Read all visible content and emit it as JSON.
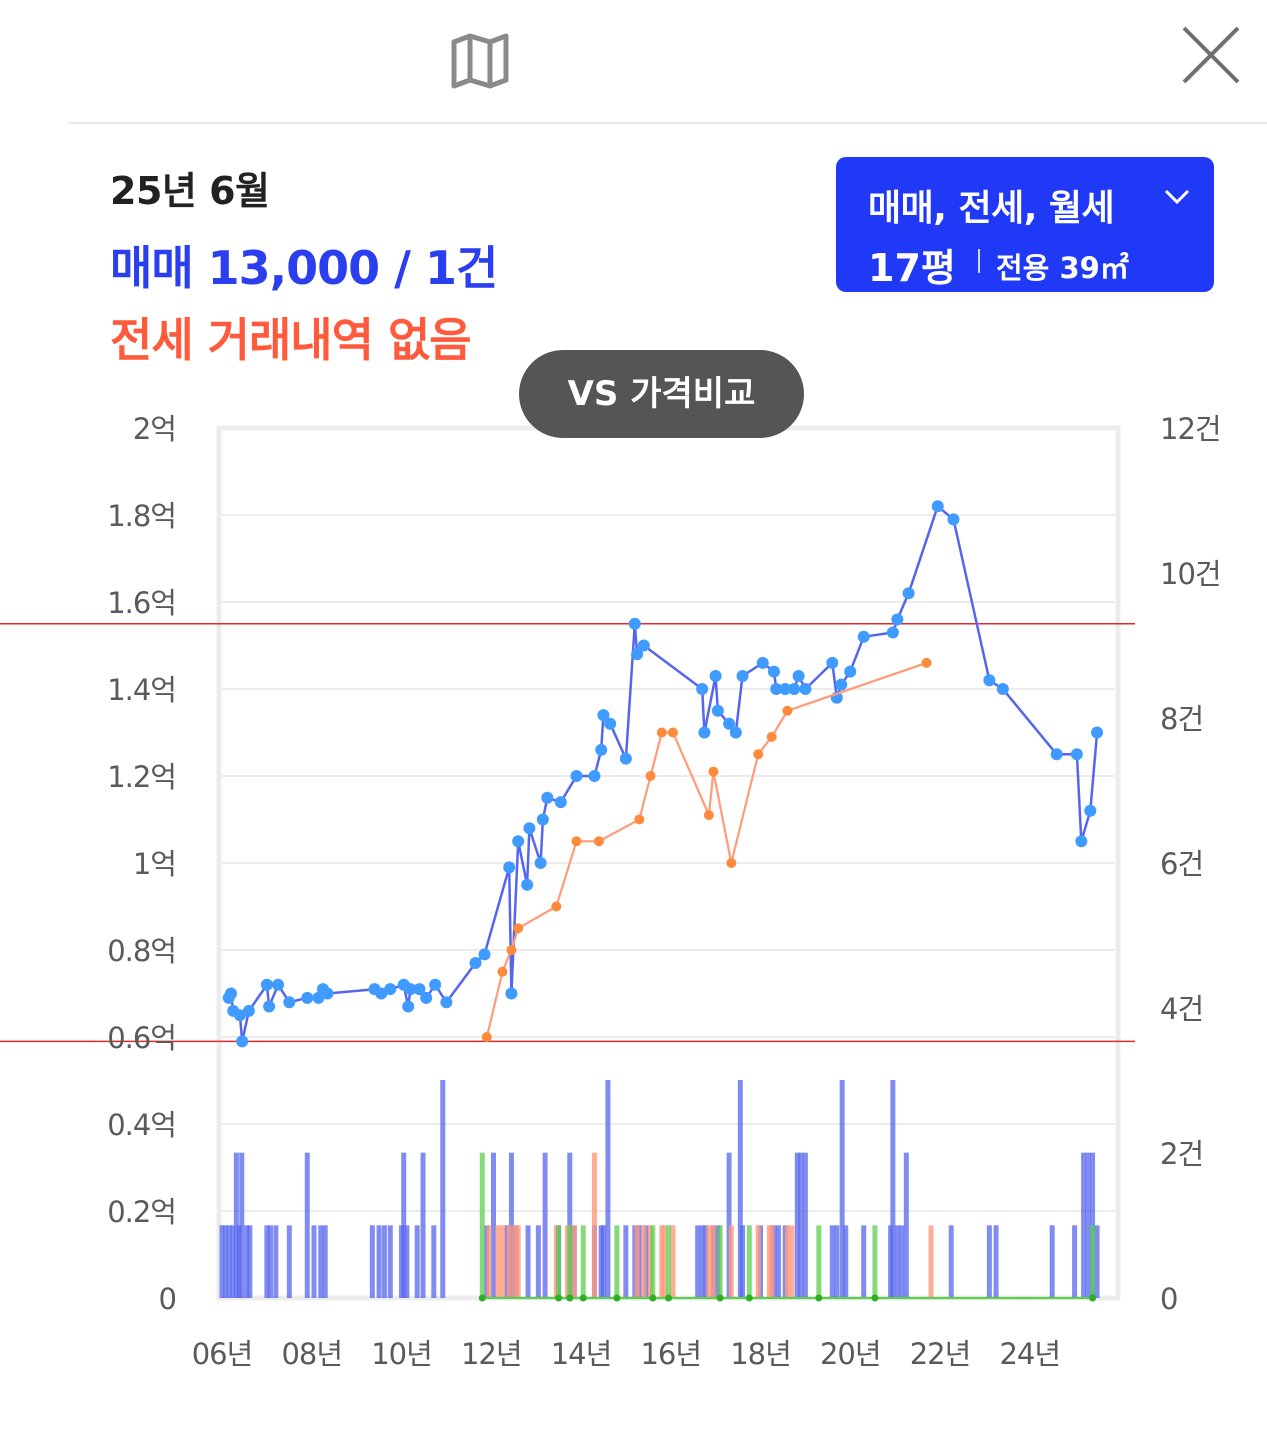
{
  "header": {
    "map_icon": "map-icon",
    "close_icon": "close-icon"
  },
  "info": {
    "date": "25년 6월",
    "sale": "매매 13,000 / 1건",
    "jeonse": "전세 거래내역 없음"
  },
  "filter": {
    "types": "매매, 전세, 월세",
    "size": "17평",
    "area": "전용 39㎡"
  },
  "vs_button": "VS 가격비교",
  "colors": {
    "sale": "#5566ee",
    "sale_point": "#3f9bff",
    "jeonse": "#ff9a7a",
    "jeonse_point": "#ff8a3c",
    "wolse": "#5ccd4e",
    "reference_line": "#e02a2a",
    "filter_bg": "#2039f6"
  },
  "chart_data": {
    "type": "line",
    "title": "",
    "grid": true,
    "x_axis": {
      "label": "",
      "range": [
        2006.0,
        2025.9
      ],
      "ticks": [
        "06년",
        "08년",
        "10년",
        "12년",
        "14년",
        "16년",
        "18년",
        "20년",
        "22년",
        "24년"
      ]
    },
    "y_left": {
      "label": "",
      "range": [
        0,
        2.0
      ],
      "unit": "억",
      "ticks": [
        "0",
        "0.2억",
        "0.4억",
        "0.6억",
        "0.8억",
        "1억",
        "1.2억",
        "1.4억",
        "1.6억",
        "1.8억",
        "2억"
      ]
    },
    "y_right": {
      "label": "",
      "range": [
        0,
        12
      ],
      "unit": "건",
      "ticks": [
        "0",
        "2건",
        "4건",
        "6건",
        "8건",
        "10건",
        "12건"
      ]
    },
    "reference_lines": [
      1.55,
      0.59
    ],
    "series": [
      {
        "name": "매매",
        "type": "line",
        "points": [
          [
            2006.15,
            0.69
          ],
          [
            2006.2,
            0.7
          ],
          [
            2006.25,
            0.66
          ],
          [
            2006.4,
            0.65
          ],
          [
            2006.45,
            0.59
          ],
          [
            2006.6,
            0.66
          ],
          [
            2007.0,
            0.72
          ],
          [
            2007.05,
            0.67
          ],
          [
            2007.25,
            0.72
          ],
          [
            2007.5,
            0.68
          ],
          [
            2007.9,
            0.69
          ],
          [
            2008.15,
            0.69
          ],
          [
            2008.25,
            0.71
          ],
          [
            2008.35,
            0.7
          ],
          [
            2009.4,
            0.71
          ],
          [
            2009.55,
            0.7
          ],
          [
            2009.75,
            0.71
          ],
          [
            2010.05,
            0.72
          ],
          [
            2010.15,
            0.67
          ],
          [
            2010.2,
            0.71
          ],
          [
            2010.4,
            0.71
          ],
          [
            2010.55,
            0.69
          ],
          [
            2010.75,
            0.72
          ],
          [
            2011.0,
            0.68
          ],
          [
            2011.65,
            0.77
          ],
          [
            2011.85,
            0.79
          ],
          [
            2012.4,
            0.99
          ],
          [
            2012.45,
            0.7
          ],
          [
            2012.6,
            1.05
          ],
          [
            2012.8,
            0.95
          ],
          [
            2012.85,
            1.08
          ],
          [
            2013.1,
            1.0
          ],
          [
            2013.15,
            1.1
          ],
          [
            2013.25,
            1.15
          ],
          [
            2013.55,
            1.14
          ],
          [
            2013.9,
            1.2
          ],
          [
            2014.3,
            1.2
          ],
          [
            2014.45,
            1.26
          ],
          [
            2014.5,
            1.34
          ],
          [
            2014.65,
            1.32
          ],
          [
            2015.0,
            1.24
          ],
          [
            2015.2,
            1.55
          ],
          [
            2015.25,
            1.48
          ],
          [
            2015.4,
            1.5
          ],
          [
            2016.7,
            1.4
          ],
          [
            2016.75,
            1.3
          ],
          [
            2017.0,
            1.43
          ],
          [
            2017.05,
            1.35
          ],
          [
            2017.3,
            1.32
          ],
          [
            2017.45,
            1.3
          ],
          [
            2017.6,
            1.43
          ],
          [
            2018.05,
            1.46
          ],
          [
            2018.3,
            1.44
          ],
          [
            2018.35,
            1.4
          ],
          [
            2018.55,
            1.4
          ],
          [
            2018.75,
            1.4
          ],
          [
            2018.85,
            1.43
          ],
          [
            2019.0,
            1.4
          ],
          [
            2019.6,
            1.46
          ],
          [
            2019.7,
            1.38
          ],
          [
            2019.8,
            1.41
          ],
          [
            2020.0,
            1.44
          ],
          [
            2020.3,
            1.52
          ],
          [
            2020.95,
            1.53
          ],
          [
            2021.05,
            1.56
          ],
          [
            2021.3,
            1.62
          ],
          [
            2021.95,
            1.82
          ],
          [
            2022.3,
            1.79
          ],
          [
            2023.1,
            1.42
          ],
          [
            2023.4,
            1.4
          ],
          [
            2024.6,
            1.25
          ],
          [
            2025.05,
            1.25
          ],
          [
            2025.15,
            1.05
          ],
          [
            2025.35,
            1.12
          ],
          [
            2025.5,
            1.3
          ]
        ]
      },
      {
        "name": "전세",
        "type": "line",
        "points": [
          [
            2011.9,
            0.6
          ],
          [
            2012.25,
            0.75
          ],
          [
            2012.45,
            0.8
          ],
          [
            2012.6,
            0.85
          ],
          [
            2013.45,
            0.9
          ],
          [
            2013.9,
            1.05
          ],
          [
            2014.4,
            1.05
          ],
          [
            2015.3,
            1.1
          ],
          [
            2015.55,
            1.2
          ],
          [
            2015.8,
            1.3
          ],
          [
            2016.05,
            1.3
          ],
          [
            2016.85,
            1.11
          ],
          [
            2016.95,
            1.21
          ],
          [
            2017.35,
            1.0
          ],
          [
            2017.95,
            1.25
          ],
          [
            2018.25,
            1.29
          ],
          [
            2018.6,
            1.35
          ],
          [
            2021.7,
            1.46
          ]
        ]
      },
      {
        "name": "월세",
        "type": "line",
        "points": [
          [
            2011.8,
            0
          ],
          [
            2013.5,
            0
          ],
          [
            2013.75,
            0
          ],
          [
            2014.05,
            0
          ],
          [
            2014.8,
            0
          ],
          [
            2015.6,
            0
          ],
          [
            2015.95,
            0
          ],
          [
            2017.1,
            0
          ],
          [
            2017.75,
            0
          ],
          [
            2019.3,
            0
          ],
          [
            2020.55,
            0
          ],
          [
            2025.4,
            0
          ]
        ]
      }
    ],
    "volume_bars": {
      "unit": "건",
      "sale": [
        [
          2006.0,
          1
        ],
        [
          2006.08,
          1
        ],
        [
          2006.16,
          1
        ],
        [
          2006.24,
          1
        ],
        [
          2006.32,
          2
        ],
        [
          2006.38,
          1
        ],
        [
          2006.44,
          2
        ],
        [
          2006.55,
          1
        ],
        [
          2006.62,
          1
        ],
        [
          2007.0,
          1
        ],
        [
          2007.08,
          1
        ],
        [
          2007.2,
          1
        ],
        [
          2007.5,
          1
        ],
        [
          2007.9,
          2
        ],
        [
          2008.05,
          1
        ],
        [
          2008.2,
          1
        ],
        [
          2008.3,
          1
        ],
        [
          2009.35,
          1
        ],
        [
          2009.5,
          1
        ],
        [
          2009.62,
          1
        ],
        [
          2009.75,
          1
        ],
        [
          2010.0,
          1
        ],
        [
          2010.05,
          2
        ],
        [
          2010.12,
          1
        ],
        [
          2010.35,
          1
        ],
        [
          2010.48,
          2
        ],
        [
          2010.72,
          1
        ],
        [
          2010.92,
          3
        ],
        [
          2011.9,
          1
        ],
        [
          2012.05,
          2
        ],
        [
          2012.35,
          1
        ],
        [
          2012.45,
          2
        ],
        [
          2012.55,
          1
        ],
        [
          2012.82,
          1
        ],
        [
          2013.05,
          1
        ],
        [
          2013.2,
          2
        ],
        [
          2013.5,
          1
        ],
        [
          2013.75,
          2
        ],
        [
          2013.85,
          1
        ],
        [
          2014.3,
          1
        ],
        [
          2014.45,
          1
        ],
        [
          2014.5,
          1
        ],
        [
          2014.6,
          3
        ],
        [
          2015.0,
          1
        ],
        [
          2015.2,
          1
        ],
        [
          2015.3,
          1
        ],
        [
          2015.45,
          1
        ],
        [
          2016.6,
          1
        ],
        [
          2016.7,
          1
        ],
        [
          2016.78,
          1
        ],
        [
          2016.95,
          1
        ],
        [
          2017.05,
          1
        ],
        [
          2017.3,
          2
        ],
        [
          2017.55,
          3
        ],
        [
          2017.6,
          1
        ],
        [
          2018.0,
          1
        ],
        [
          2018.3,
          1
        ],
        [
          2018.4,
          1
        ],
        [
          2018.55,
          1
        ],
        [
          2018.82,
          2
        ],
        [
          2018.9,
          2
        ],
        [
          2019.0,
          2
        ],
        [
          2019.6,
          1
        ],
        [
          2019.7,
          1
        ],
        [
          2019.82,
          3
        ],
        [
          2019.9,
          1
        ],
        [
          2020.3,
          1
        ],
        [
          2020.9,
          1
        ],
        [
          2020.95,
          3
        ],
        [
          2021.05,
          1
        ],
        [
          2021.15,
          1
        ],
        [
          2021.25,
          2
        ],
        [
          2022.25,
          1
        ],
        [
          2023.1,
          1
        ],
        [
          2023.25,
          1
        ],
        [
          2024.5,
          1
        ],
        [
          2025.0,
          1
        ],
        [
          2025.2,
          2
        ],
        [
          2025.3,
          2
        ],
        [
          2025.4,
          2
        ],
        [
          2025.5,
          1
        ]
      ],
      "jeonse": [
        [
          2011.95,
          1
        ],
        [
          2012.15,
          1
        ],
        [
          2012.25,
          1
        ],
        [
          2012.4,
          1
        ],
        [
          2012.52,
          1
        ],
        [
          2012.6,
          1
        ],
        [
          2013.45,
          1
        ],
        [
          2013.7,
          1
        ],
        [
          2013.85,
          1
        ],
        [
          2014.3,
          2
        ],
        [
          2015.25,
          1
        ],
        [
          2015.4,
          1
        ],
        [
          2015.55,
          1
        ],
        [
          2015.8,
          1
        ],
        [
          2015.85,
          1
        ],
        [
          2016.05,
          1
        ],
        [
          2016.85,
          1
        ],
        [
          2016.95,
          1
        ],
        [
          2017.35,
          1
        ],
        [
          2017.95,
          1
        ],
        [
          2018.2,
          1
        ],
        [
          2018.25,
          1
        ],
        [
          2018.6,
          1
        ],
        [
          2018.7,
          1
        ],
        [
          2021.8,
          1
        ]
      ],
      "wolse": [
        [
          2011.8,
          2
        ],
        [
          2013.5,
          1
        ],
        [
          2013.75,
          1
        ],
        [
          2014.05,
          1
        ],
        [
          2014.8,
          1
        ],
        [
          2015.6,
          1
        ],
        [
          2015.95,
          1
        ],
        [
          2017.1,
          1
        ],
        [
          2017.75,
          1
        ],
        [
          2019.3,
          1
        ],
        [
          2020.55,
          1
        ],
        [
          2025.4,
          1
        ]
      ]
    }
  }
}
